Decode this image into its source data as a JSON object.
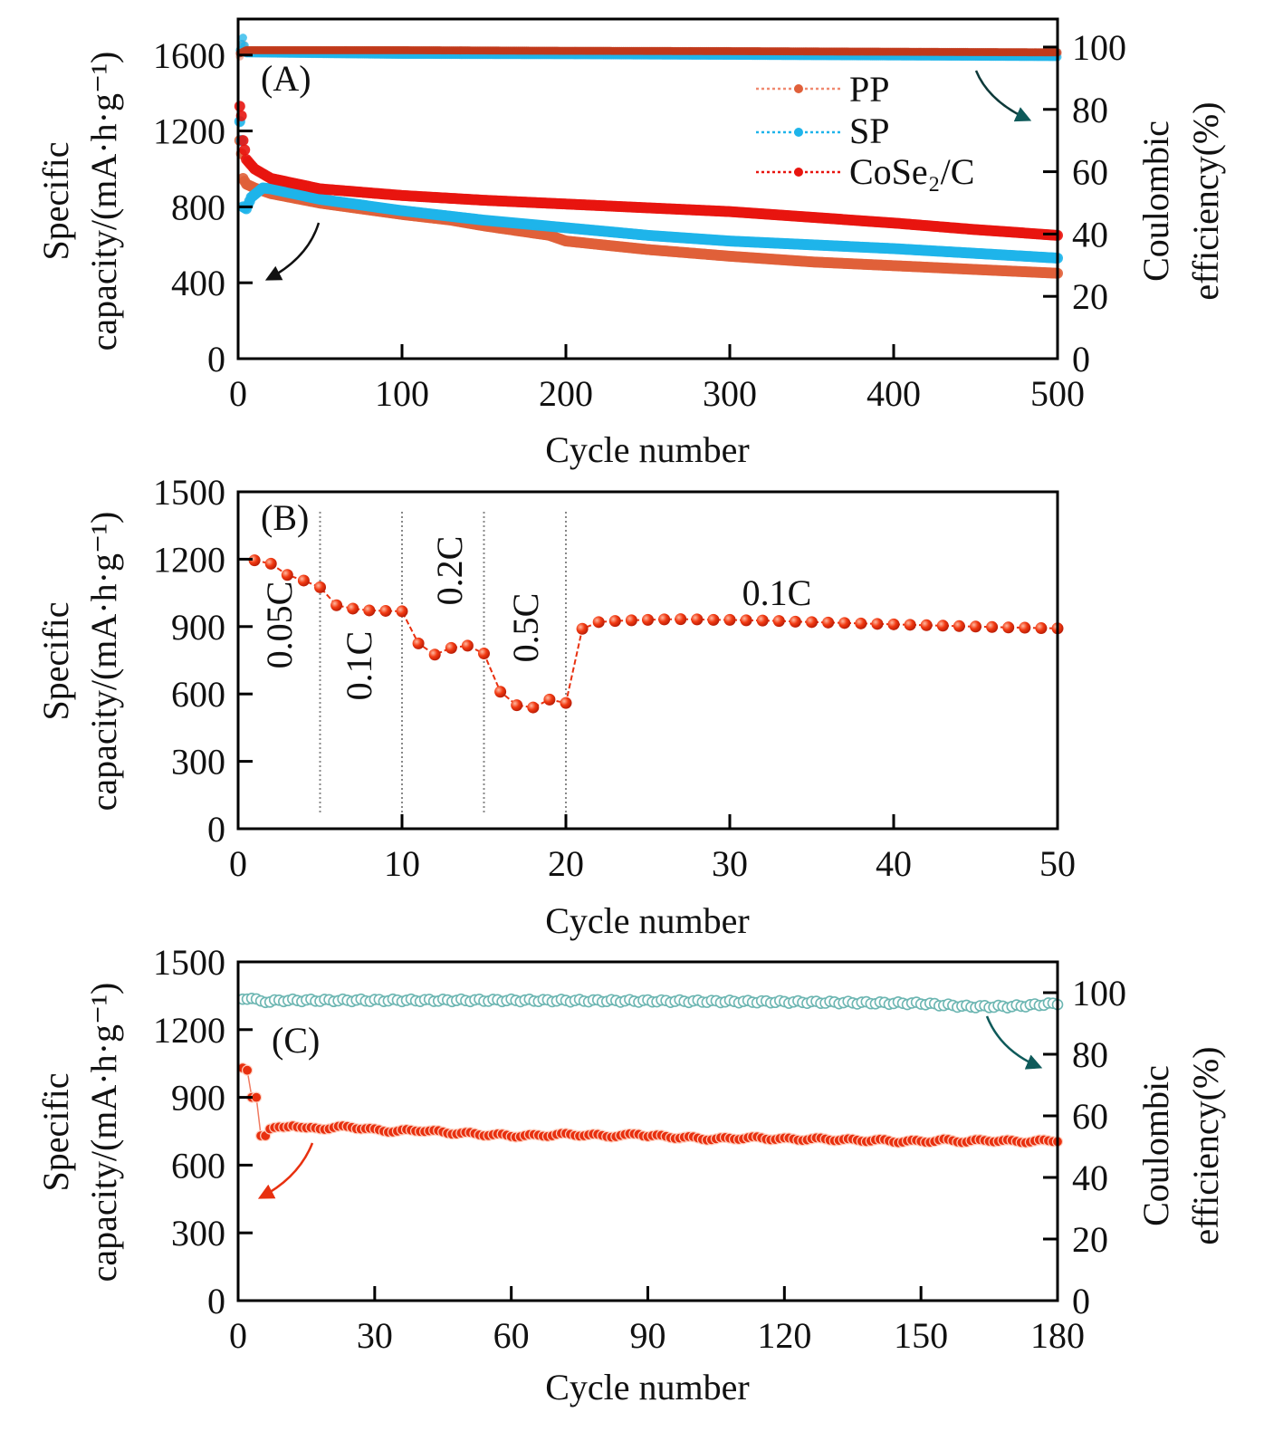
{
  "figure_labels": {
    "A": "(A)",
    "B": "(B)",
    "C": "(C)"
  },
  "chart_data": [
    {
      "id": "A",
      "type": "line",
      "panel_label": "(A)",
      "xlabel": "Cycle number",
      "ylabel_line1": "Specific",
      "ylabel_line2": "capacity/(mA·h·g⁻¹)",
      "y2label_line1": "Coulombic",
      "y2label_line2": "efficiency(%)",
      "xlim": [
        0,
        500
      ],
      "ylim": [
        0,
        1790
      ],
      "y2lim": [
        0,
        109
      ],
      "xticks": [
        0,
        100,
        200,
        300,
        400,
        500
      ],
      "yticks": [
        0,
        400,
        800,
        1200,
        1600
      ],
      "y2ticks": [
        0,
        20,
        40,
        60,
        80,
        100
      ],
      "legend": {
        "placement": "top-right",
        "entries": [
          "PP",
          "SP",
          "CoSe₂/C"
        ]
      },
      "series": [
        {
          "name": "PP",
          "color": "#e0603a",
          "axis": "left",
          "x": [
            1,
            2,
            3,
            5,
            10,
            20,
            50,
            100,
            130,
            150,
            190,
            200,
            250,
            300,
            350,
            400,
            450,
            500
          ],
          "y": [
            1150,
            1080,
            950,
            920,
            900,
            870,
            820,
            760,
            730,
            700,
            650,
            620,
            575,
            540,
            510,
            490,
            470,
            450
          ]
        },
        {
          "name": "SP",
          "color": "#1eb4ea",
          "axis": "left",
          "x": [
            1,
            2,
            3,
            5,
            8,
            15,
            20,
            50,
            100,
            150,
            200,
            250,
            300,
            350,
            400,
            450,
            500
          ],
          "y": [
            1250,
            1150,
            800,
            790,
            850,
            900,
            895,
            840,
            780,
            730,
            690,
            650,
            620,
            600,
            580,
            555,
            530
          ]
        },
        {
          "name": "CoSe₂/C",
          "color": "#e8150f",
          "axis": "left",
          "x": [
            1,
            2,
            3,
            5,
            10,
            20,
            50,
            100,
            150,
            200,
            250,
            300,
            350,
            400,
            450,
            500
          ],
          "y": [
            1330,
            1280,
            1150,
            1050,
            1000,
            950,
            895,
            860,
            835,
            815,
            795,
            775,
            745,
            715,
            680,
            650
          ]
        },
        {
          "name": "PP CE",
          "color": "#f2a08a",
          "axis": "right",
          "x": [
            1,
            3,
            5,
            100,
            200,
            300,
            400,
            500
          ],
          "y": [
            97,
            101,
            98.5,
            98.5,
            98.3,
            98.2,
            98,
            97.8
          ]
        },
        {
          "name": "SP CE",
          "color": "#1eb4ea",
          "axis": "right",
          "x": [
            1,
            3,
            5,
            100,
            200,
            300,
            400,
            500
          ],
          "y": [
            99,
            103,
            98,
            97.5,
            97.4,
            97.2,
            97,
            96.8
          ]
        },
        {
          "name": "CoSe₂/C CE",
          "color": "#c0391b",
          "axis": "right",
          "x": [
            1,
            5,
            100,
            200,
            300,
            400,
            500
          ],
          "y": [
            98,
            99,
            99,
            98.8,
            98.7,
            98.5,
            98.3
          ]
        }
      ],
      "annotations": [
        "arrow-to-left-axis",
        "arrow-to-right-axis"
      ]
    },
    {
      "id": "B",
      "type": "line",
      "panel_label": "(B)",
      "xlabel": "Cycle number",
      "ylabel_line1": "Specific",
      "ylabel_line2": "capacity/(mA·h·g⁻¹)",
      "xlim": [
        0,
        50
      ],
      "ylim": [
        0,
        1500
      ],
      "xticks": [
        0,
        10,
        20,
        30,
        40,
        50
      ],
      "yticks": [
        0,
        300,
        600,
        900,
        1200,
        1500
      ],
      "rate_regions": [
        {
          "label": "0.05C",
          "from": 0,
          "to": 5
        },
        {
          "label": "0.1C",
          "from": 5,
          "to": 10
        },
        {
          "label": "0.2C",
          "from": 10,
          "to": 15
        },
        {
          "label": "0.5C",
          "from": 15,
          "to": 20
        },
        {
          "label": "0.1C",
          "from": 20,
          "to": 50
        }
      ],
      "dividers": [
        5,
        10,
        15,
        20
      ],
      "series": [
        {
          "name": "CoSe₂/C",
          "color": "#e8300f",
          "x": [
            1,
            2,
            3,
            4,
            5,
            6,
            7,
            8,
            9,
            10,
            11,
            12,
            13,
            14,
            15,
            16,
            17,
            18,
            19,
            20,
            21,
            22,
            23,
            24,
            25,
            26,
            27,
            28,
            29,
            30,
            31,
            32,
            33,
            34,
            35,
            36,
            37,
            38,
            39,
            40,
            41,
            42,
            43,
            44,
            45,
            46,
            47,
            48,
            49,
            50
          ],
          "y": [
            1195,
            1180,
            1130,
            1105,
            1075,
            995,
            980,
            972,
            970,
            968,
            825,
            775,
            805,
            815,
            780,
            610,
            550,
            540,
            575,
            560,
            890,
            920,
            925,
            928,
            930,
            932,
            933,
            932,
            930,
            930,
            928,
            927,
            925,
            922,
            920,
            918,
            916,
            914,
            912,
            910,
            908,
            906,
            904,
            902,
            900,
            898,
            896,
            895,
            893,
            892
          ]
        }
      ]
    },
    {
      "id": "C",
      "type": "line",
      "panel_label": "(C)",
      "xlabel": "Cycle number",
      "ylabel_line1": "Specific",
      "ylabel_line2": "capacity/(mA·h·g⁻¹)",
      "y2label_line1": "Coulombic",
      "y2label_line2": "efficiency(%)",
      "xlim": [
        0,
        180
      ],
      "ylim": [
        0,
        1500
      ],
      "y2lim": [
        0,
        110
      ],
      "xticks": [
        0,
        30,
        60,
        90,
        120,
        150,
        180
      ],
      "yticks": [
        0,
        300,
        600,
        900,
        1200,
        1500
      ],
      "y2ticks": [
        0,
        20,
        40,
        60,
        80,
        100
      ],
      "series": [
        {
          "name": "Specific capacity",
          "color": "#e8300f",
          "axis": "left",
          "x": [
            1,
            2,
            3,
            4,
            5,
            6,
            7,
            10,
            12,
            15,
            20,
            25,
            30,
            35,
            40,
            45,
            50,
            55,
            60,
            65,
            70,
            75,
            80,
            85,
            88,
            90,
            95,
            100,
            105,
            110,
            115,
            120,
            125,
            130,
            135,
            140,
            145,
            150,
            155,
            160,
            165,
            170,
            175,
            180
          ],
          "y": [
            1030,
            1020,
            900,
            900,
            730,
            730,
            760,
            765,
            780,
            760,
            765,
            770,
            755,
            750,
            755,
            745,
            740,
            735,
            730,
            730,
            735,
            735,
            730,
            730,
            740,
            730,
            725,
            720,
            715,
            720,
            720,
            715,
            715,
            715,
            710,
            710,
            705,
            705,
            710,
            705,
            710,
            705,
            705,
            710
          ]
        },
        {
          "name": "Coulombic efficiency",
          "color": "#6cb6b2",
          "axis": "right",
          "x": [
            1,
            3,
            5,
            10,
            30,
            60,
            90,
            120,
            150,
            160,
            170,
            180
          ],
          "y": [
            97.5,
            98.5,
            97,
            97.5,
            97.5,
            97.5,
            97.3,
            97,
            96.5,
            95.5,
            95.5,
            96.5
          ]
        }
      ],
      "annotations": [
        "arrow-to-left-axis",
        "arrow-to-right-axis"
      ]
    }
  ]
}
